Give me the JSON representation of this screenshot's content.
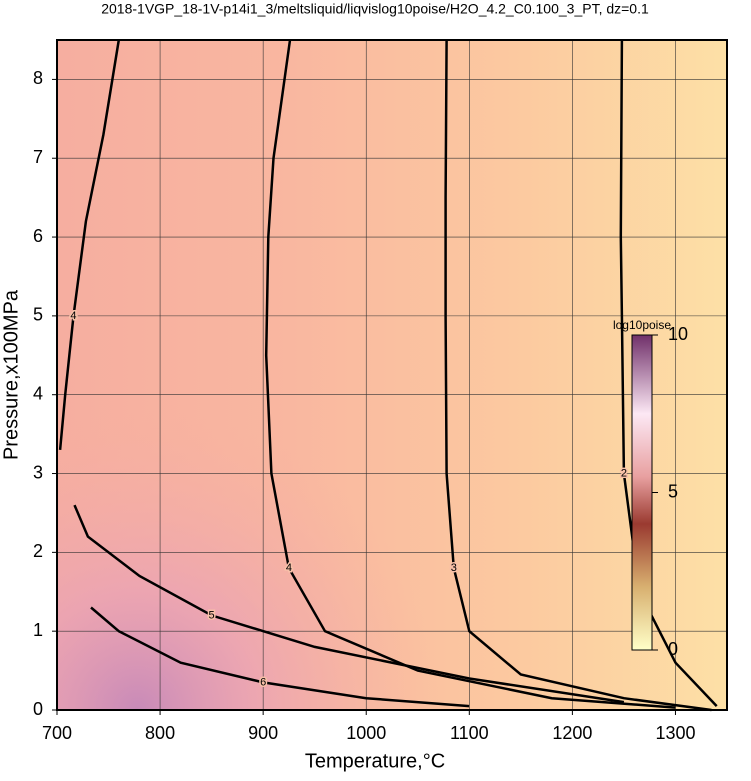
{
  "chart_data": {
    "type": "contour",
    "title": "2018-1VGP_18-1V-p14i1_3/meltsliquid/liqvislog10poise/H2O_4.2_C0.100_3_PT, dz=0.1",
    "xlabel": "Temperature,°C",
    "ylabel": "Pressure,x100MPa",
    "xlim": [
      700,
      1350
    ],
    "xticks": [
      700,
      800,
      900,
      1000,
      1100,
      1200,
      1300
    ],
    "ylim": [
      0,
      8.5
    ],
    "yticks": [
      0,
      1,
      2,
      3,
      4,
      5,
      6,
      7,
      8
    ],
    "grid": true,
    "colorbar": {
      "label": "log10poise",
      "lim": [
        0,
        10
      ],
      "ticks": [
        0,
        5,
        10
      ]
    },
    "contours": [
      {
        "level": 2,
        "x": [
          1248,
          1247,
          1248,
          1250,
          1265,
          1300,
          1340
        ],
        "y": [
          8.5,
          6,
          5,
          3,
          1.5,
          0.6,
          0.05
        ]
      },
      {
        "level": 3,
        "x": [
          1078,
          1077,
          1077,
          1078,
          1085,
          1100,
          1150,
          1250,
          1335
        ],
        "y": [
          8.5,
          6.5,
          5,
          3,
          1.8,
          1.0,
          0.45,
          0.15,
          0
        ]
      },
      {
        "level": 4,
        "x": [
          926,
          910,
          905,
          903,
          908,
          925,
          960,
          1050,
          1180,
          1300
        ],
        "y": [
          8.5,
          7,
          6,
          4.5,
          3,
          1.8,
          1.0,
          0.5,
          0.15,
          0.03
        ]
      },
      {
        "level": 4,
        "x": [
          760,
          745,
          728,
          716,
          708,
          703
        ],
        "y": [
          8.5,
          7.3,
          6.2,
          5,
          4,
          3.3
        ]
      },
      {
        "level": 5,
        "x": [
          717,
          730,
          780,
          850,
          950,
          1100,
          1250
        ],
        "y": [
          2.6,
          2.2,
          1.7,
          1.2,
          0.8,
          0.4,
          0.1
        ]
      },
      {
        "level": 6,
        "x": [
          733,
          760,
          820,
          900,
          1000,
          1100
        ],
        "y": [
          1.3,
          1.0,
          0.6,
          0.35,
          0.15,
          0.05
        ]
      }
    ]
  }
}
